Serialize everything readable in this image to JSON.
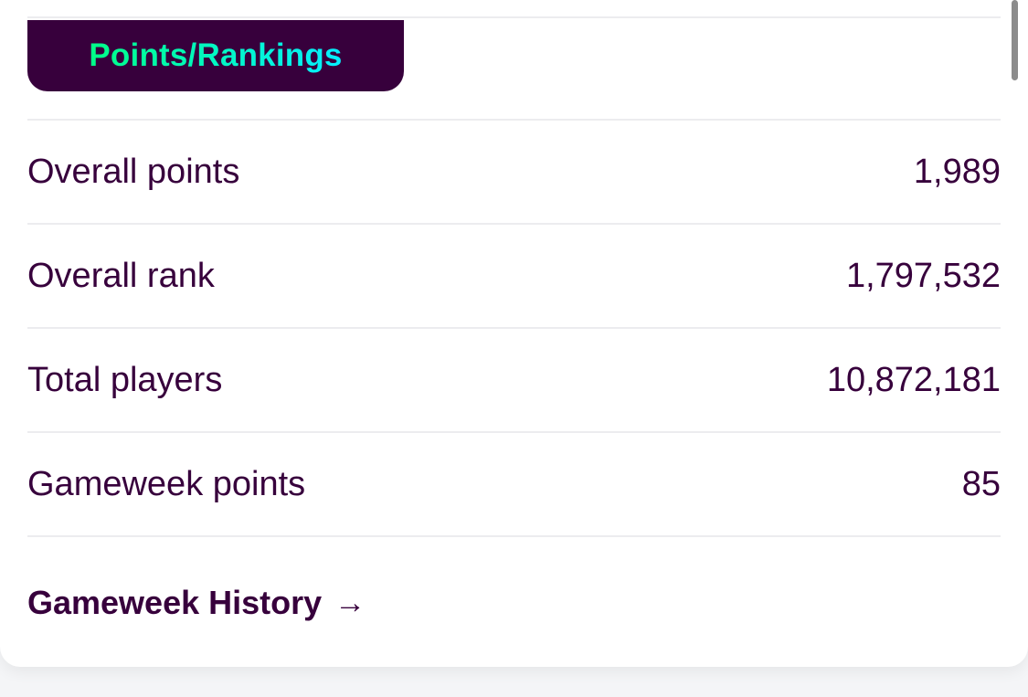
{
  "section_tab": {
    "label": "Points/Rankings"
  },
  "stats": [
    {
      "label": "Overall points",
      "value": "1,989"
    },
    {
      "label": "Overall rank",
      "value": "1,797,532"
    },
    {
      "label": "Total players",
      "value": "10,872,181"
    },
    {
      "label": "Gameweek points",
      "value": "85"
    }
  ],
  "history_link": {
    "label": "Gameweek History",
    "icon": "arrow-right-icon",
    "arrow": "→"
  },
  "colors": {
    "brand_purple": "#37003c",
    "accent_green": "#00ff87",
    "accent_cyan": "#05f0ff",
    "divider": "#ececef",
    "card_background": "#ffffff"
  }
}
